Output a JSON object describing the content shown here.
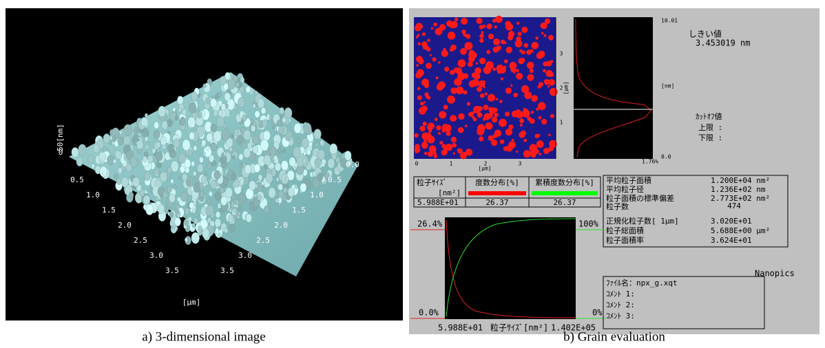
{
  "panel_a": {
    "z_axis_label": "50[nm]",
    "z_tick": "0",
    "left_ticks": [
      "0.5",
      "1.0",
      "1.5",
      "2.0",
      "2.5",
      "3.0",
      "3.5"
    ],
    "right_ticks": [
      "0.0",
      "0.5",
      "1.0",
      "1.5",
      "2.0",
      "2.5",
      "3.0",
      "3.5"
    ],
    "axis_unit": "[μm]",
    "caption": "a) 3-dimensional image"
  },
  "panel_b": {
    "map": {
      "x_ticks": [
        "0",
        "1",
        "2",
        "3"
      ],
      "y_ticks": [
        "1",
        "2",
        "3"
      ],
      "x_unit": "[μm]",
      "y_unit": "[μm]"
    },
    "histogram": {
      "top": "10.01",
      "unit": "[nm]",
      "bottom": "0.0",
      "right": "1.76%"
    },
    "threshold": {
      "label": "しきい値",
      "value": "3.453019 nm"
    },
    "cutoff": {
      "label": "ｶｯﾄｵﾌ値",
      "upper": "上限 :",
      "lower": "下限 :"
    },
    "table": {
      "header": [
        "粒子ｻｲｽﾞ",
        "[nm²]",
        "度数分布[%]",
        "累積度数分布[%]"
      ],
      "row": [
        "5.988E+01",
        "26.37",
        "26.37"
      ]
    },
    "stats": [
      [
        "平均粒子面積",
        "1.200E+04 nm²"
      ],
      [
        "平均粒子径",
        "1.236E+02 nm"
      ],
      [
        "粒子面積の標準偏差",
        "2.773E+02 nm²"
      ],
      [
        "粒子数",
        "474"
      ],
      [
        "正規化粒子数[    1μm]",
        "3.020E+01"
      ],
      [
        "粒子総面積",
        "5.688E+00 μm²"
      ],
      [
        "粒子面積率",
        "3.624E+01"
      ]
    ],
    "distribution": {
      "left_top": "26.4%",
      "left_bottom": "0.0%",
      "right_top": "100%",
      "right_bottom": "0%",
      "x_min": "5.988E+01",
      "x_label": "粒子ｻｲｽﾞ[nm²]",
      "x_max": "1.402E+05"
    },
    "file": [
      "ﾌｧｲﾙ名：npx_g.xqt",
      "ｺﾒﾝﾄ 1:",
      "ｺﾒﾝﾄ 2:",
      "ｺﾒﾝﾄ 3:"
    ],
    "brand": "Nanopics",
    "caption": "b) Grain evaluation"
  }
}
